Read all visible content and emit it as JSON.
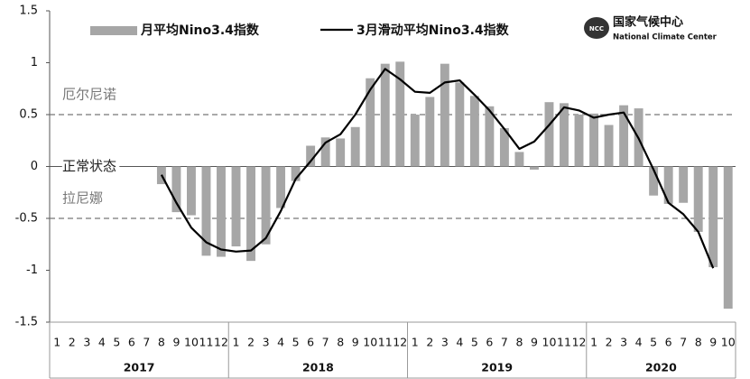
{
  "chart_data": {
    "type": "bar_line",
    "categories": [
      "1",
      "2",
      "3",
      "4",
      "5",
      "6",
      "7",
      "8",
      "9",
      "10",
      "11",
      "12",
      "1",
      "2",
      "3",
      "4",
      "5",
      "6",
      "7",
      "8",
      "9",
      "10",
      "11",
      "12",
      "1",
      "2",
      "3",
      "4",
      "5",
      "6",
      "7",
      "8",
      "9",
      "10",
      "11",
      "12",
      "1",
      "2",
      "3",
      "4",
      "5",
      "6",
      "7",
      "8",
      "9",
      "10"
    ],
    "groups": [
      "2017",
      "2018",
      "2019",
      "2020"
    ],
    "series": [
      {
        "name": "月平均Nino3.4指数",
        "kind": "bar",
        "color": "#a6a6a6",
        "values": [
          null,
          null,
          null,
          null,
          null,
          null,
          null,
          -0.17,
          -0.44,
          -0.47,
          -0.86,
          -0.87,
          -0.77,
          -0.91,
          -0.75,
          -0.4,
          -0.14,
          0.2,
          0.28,
          0.27,
          0.38,
          0.85,
          0.99,
          1.01,
          0.5,
          0.67,
          0.99,
          0.81,
          0.68,
          0.58,
          0.37,
          0.14,
          -0.03,
          0.62,
          0.61,
          0.5,
          0.51,
          0.4,
          0.59,
          0.56,
          -0.28,
          -0.36,
          -0.35,
          -0.63,
          -0.97,
          -1.37
        ]
      },
      {
        "name": "3月滑动平均Nino3.4指数",
        "kind": "line",
        "color": "#000000",
        "values": [
          null,
          null,
          null,
          null,
          null,
          null,
          null,
          -0.08,
          -0.35,
          -0.59,
          -0.73,
          -0.8,
          -0.82,
          -0.81,
          -0.69,
          -0.43,
          -0.12,
          0.05,
          0.23,
          0.31,
          0.5,
          0.74,
          0.94,
          0.84,
          0.72,
          0.71,
          0.81,
          0.83,
          0.69,
          0.54,
          0.36,
          0.17,
          0.24,
          0.4,
          0.57,
          0.54,
          0.47,
          0.5,
          0.52,
          0.27,
          -0.03,
          -0.35,
          -0.46,
          -0.63,
          -0.98,
          null
        ]
      }
    ],
    "reference_lines": [
      {
        "value": 0.5,
        "label": "厄尔尼诺",
        "dashed": true
      },
      {
        "value": 0,
        "label": "正常状态",
        "dashed": false
      },
      {
        "value": -0.5,
        "label": "拉尼娜",
        "dashed": true
      }
    ],
    "ylim": [
      -1.5,
      1.5
    ],
    "yticks": [
      -1.5,
      -1,
      -0.5,
      0,
      0.5,
      1,
      1.5
    ],
    "logo": {
      "abbr": "NCC",
      "cn": "国家气候中心",
      "en": "National Climate Center"
    }
  }
}
